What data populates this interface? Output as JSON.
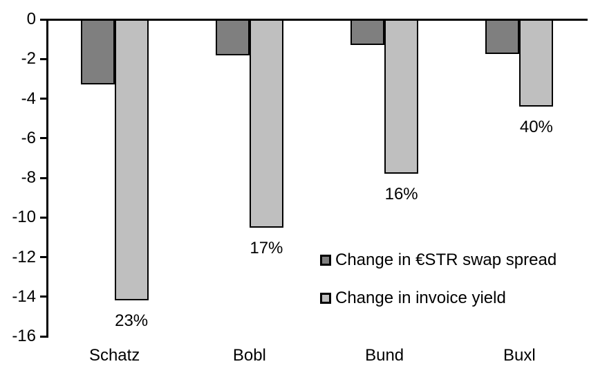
{
  "chart_data": {
    "type": "bar",
    "orientation": "vertical-negative",
    "categories": [
      "Schatz",
      "Bobl",
      "Bund",
      "Buxl"
    ],
    "series": [
      {
        "name": "Change in €STR swap spread",
        "color": "#7f7f7f",
        "values": [
          -3.3,
          -1.8,
          -1.3,
          -1.75
        ]
      },
      {
        "name": "Change in invoice yield",
        "color": "#bfbfbf",
        "values": [
          -14.2,
          -10.5,
          -7.8,
          -4.4
        ],
        "data_labels": [
          "23%",
          "17%",
          "16%",
          "40%"
        ]
      }
    ],
    "title": "",
    "xlabel": "",
    "ylabel": "",
    "ylim": [
      -16,
      0
    ],
    "yticks": [
      0,
      -2,
      -4,
      -6,
      -8,
      -10,
      -12,
      -14,
      -16
    ],
    "grid": false,
    "legend_position": "inside-lower-right",
    "axis_color": "#000000",
    "background_color": "#ffffff"
  }
}
